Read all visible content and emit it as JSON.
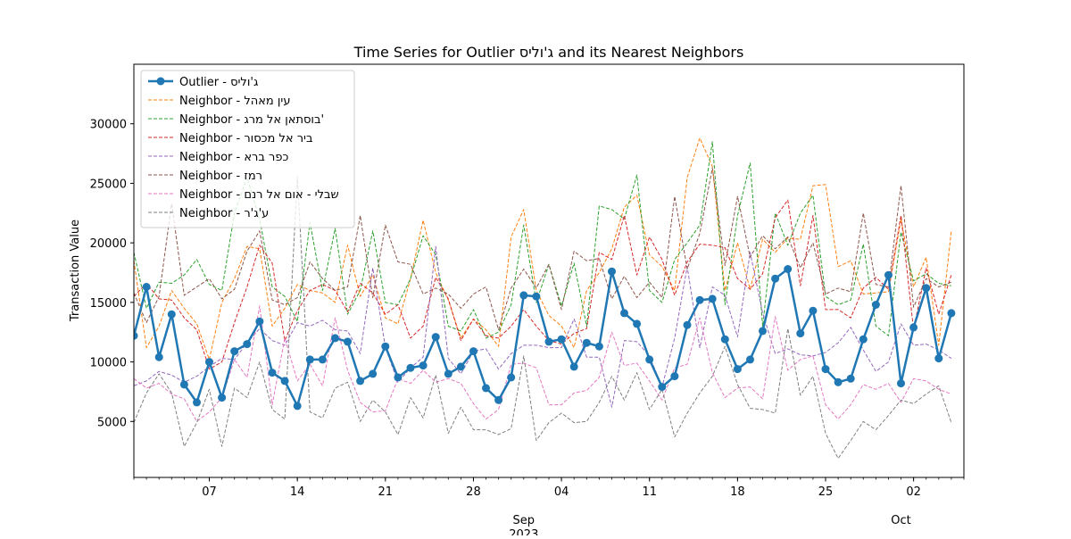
{
  "chart_data": {
    "type": "line",
    "title": "Time Series for Outlier ג'וליס and its Nearest Neighbors",
    "xlabel": "",
    "ylabel": "Transaction Value",
    "x_start": "2023-08-01",
    "x_end": "2023-10-06",
    "ylim": [
      300,
      35000
    ],
    "y_ticks": [
      5000,
      10000,
      15000,
      20000,
      25000,
      30000
    ],
    "x_ticks": [
      {
        "date": "2023-08-07",
        "label": "07"
      },
      {
        "date": "2023-08-14",
        "label": "14"
      },
      {
        "date": "2023-08-21",
        "label": "21"
      },
      {
        "date": "2023-08-28",
        "label": "28"
      },
      {
        "date": "2023-09-04",
        "label": "04"
      },
      {
        "date": "2023-09-11",
        "label": "11"
      },
      {
        "date": "2023-09-18",
        "label": "18"
      },
      {
        "date": "2023-09-25",
        "label": "25"
      },
      {
        "date": "2023-10-02",
        "label": "02"
      }
    ],
    "month_labels": [
      {
        "date": "2023-09-01",
        "label": "Sep",
        "year": "2023"
      },
      {
        "date": "2023-10-01",
        "label": "Oct",
        "year": ""
      }
    ],
    "grid": false,
    "legend_position": "top-left",
    "series": [
      {
        "name": "Outlier - ג'וליס",
        "color": "#1f77b4",
        "style": "outlier",
        "values": [
          12200,
          16300,
          10400,
          14000,
          8100,
          6600,
          10000,
          7000,
          10900,
          11500,
          13400,
          9100,
          8400,
          6300,
          10200,
          10200,
          12000,
          11700,
          8400,
          9000,
          11300,
          8700,
          9500,
          9700,
          12100,
          9000,
          9600,
          10900,
          7800,
          6800,
          8700,
          15600,
          15500,
          11700,
          11900,
          9600,
          11600,
          11300,
          17600,
          14100,
          13200,
          10200,
          7900,
          8800,
          13100,
          15200,
          15300,
          11900,
          9400,
          10200,
          12600,
          17000,
          17800,
          12400,
          14300,
          9400,
          8300,
          8600,
          11900,
          14800,
          17300,
          8200,
          12900,
          16200,
          10300,
          14100
        ]
      },
      {
        "name": "Neighbor - עין מאהל",
        "color": "#ff7f0e",
        "style": "neighbor",
        "values": [
          18500,
          11200,
          13000,
          16000,
          14500,
          13200,
          10200,
          15000,
          17000,
          19700,
          19500,
          13000,
          14500,
          16500,
          16000,
          15800,
          15000,
          19800,
          15500,
          17300,
          13700,
          13200,
          17000,
          21900,
          17500,
          15200,
          12000,
          13600,
          12700,
          11300,
          20500,
          22800,
          16000,
          13900,
          13000,
          11200,
          16000,
          17500,
          19500,
          23000,
          24000,
          19000,
          18000,
          16000,
          25500,
          28800,
          26400,
          16000,
          20000,
          16100,
          20300,
          19200,
          20400,
          20300,
          24800,
          24900,
          18000,
          18500,
          15700,
          15800,
          15900,
          22000,
          16300,
          18800,
          11400,
          21000
        ]
      },
      {
        "name": "Neighbor - בוסתאן אל מרג'",
        "color": "#2ca02c",
        "style": "neighbor",
        "values": [
          19200,
          14500,
          16700,
          16600,
          17300,
          18600,
          16500,
          16000,
          22500,
          25500,
          22000,
          16300,
          15500,
          13400,
          21700,
          16000,
          21200,
          14000,
          16000,
          21000,
          15000,
          14800,
          17000,
          20600,
          19000,
          13000,
          12600,
          14400,
          12000,
          12500,
          14800,
          21500,
          15000,
          18200,
          14700,
          18300,
          13000,
          23100,
          22800,
          22000,
          25700,
          16000,
          15000,
          18600,
          20000,
          21500,
          28500,
          14800,
          22300,
          26700,
          13000,
          22500,
          19800,
          22500,
          24000,
          15500,
          14800,
          15200,
          19900,
          13000,
          12200,
          20900,
          16800,
          17400,
          16600,
          16400
        ]
      },
      {
        "name": "Neighbor - ביר אל מכסור",
        "color": "#d62728",
        "style": "neighbor",
        "values": [
          15500,
          16600,
          15300,
          15200,
          13700,
          12700,
          9400,
          10000,
          13300,
          16300,
          19800,
          18300,
          11800,
          14300,
          16000,
          16500,
          16000,
          14200,
          16600,
          15800,
          14000,
          14800,
          12000,
          13000,
          17100,
          15300,
          11800,
          13600,
          12200,
          12000,
          13000,
          14400,
          13000,
          11800,
          11500,
          12400,
          12800,
          19200,
          18600,
          22300,
          17300,
          20500,
          18600,
          15600,
          18400,
          19900,
          19800,
          19600,
          17000,
          16100,
          17400,
          22100,
          23600,
          16400,
          22300,
          14400,
          14400,
          13700,
          16200,
          17100,
          16100,
          22300,
          12700,
          17900,
          14000,
          17300
        ]
      },
      {
        "name": "Neighbor - כפר ברא",
        "color": "#9467bd",
        "style": "neighbor",
        "values": [
          8000,
          8400,
          9200,
          8900,
          8300,
          8800,
          9600,
          10300,
          10200,
          11600,
          12800,
          11800,
          11400,
          13300,
          13000,
          13500,
          12700,
          12600,
          10700,
          17900,
          11200,
          8300,
          9500,
          10400,
          19700,
          10300,
          9000,
          10900,
          11100,
          9400,
          10700,
          11400,
          11400,
          11200,
          11200,
          13600,
          10400,
          10400,
          6200,
          11800,
          11700,
          10500,
          7900,
          12000,
          18000,
          11200,
          16300,
          15600,
          12100,
          19200,
          14100,
          10700,
          11100,
          10600,
          10500,
          10800,
          11600,
          12900,
          11000,
          9200,
          10000,
          13200,
          11400,
          11500,
          11000,
          10300
        ]
      },
      {
        "name": "Neighbor - רמז",
        "color": "#8c564b",
        "style": "neighbor",
        "values": [
          15800,
          13300,
          15500,
          23300,
          15600,
          16300,
          17000,
          15300,
          16100,
          19300,
          21000,
          15200,
          14800,
          15400,
          18400,
          17000,
          16000,
          16300,
          22300,
          15400,
          21500,
          18400,
          18200,
          15700,
          16200,
          15700,
          14500,
          15700,
          16300,
          12700,
          16200,
          17800,
          16200,
          18200,
          14400,
          19300,
          18500,
          18700,
          15300,
          17200,
          15400,
          16700,
          15400,
          23900,
          17800,
          20800,
          26300,
          18100,
          23900,
          18800,
          20600,
          19500,
          20500,
          17900,
          20000,
          15700,
          16200,
          15900,
          22500,
          16500,
          16300,
          24800,
          14600,
          17000,
          16300,
          16700
        ]
      },
      {
        "name": "Neighbor - שבלי - אום אל רנם",
        "color": "#e377c2",
        "style": "neighbor",
        "values": [
          8600,
          7800,
          8200,
          7300,
          6900,
          5000,
          5800,
          7000,
          10200,
          8700,
          14700,
          6400,
          12000,
          8400,
          9800,
          8000,
          13700,
          9300,
          6600,
          5800,
          5900,
          8600,
          8200,
          9300,
          8300,
          8600,
          8200,
          6500,
          5200,
          6000,
          9800,
          9900,
          9500,
          6400,
          6400,
          7400,
          7600,
          8700,
          12500,
          9700,
          9900,
          8400,
          6800,
          9500,
          9800,
          13700,
          9100,
          7000,
          7800,
          7900,
          6900,
          13800,
          9300,
          10200,
          10500,
          6400,
          5200,
          6400,
          8100,
          7700,
          8200,
          6600,
          8600,
          8400,
          7700,
          7300
        ]
      },
      {
        "name": "Neighbor - ע'ג'ר",
        "color": "#7f7f7f",
        "style": "neighbor",
        "values": [
          4900,
          7400,
          9000,
          7400,
          2900,
          4900,
          7700,
          2900,
          7800,
          7000,
          10000,
          6000,
          5200,
          25600,
          5800,
          5300,
          7800,
          8300,
          5000,
          6800,
          5800,
          3900,
          7000,
          5300,
          8900,
          4000,
          6200,
          4300,
          4300,
          3900,
          4400,
          10500,
          3400,
          4900,
          5700,
          4900,
          5000,
          6600,
          8800,
          6800,
          9100,
          6000,
          7700,
          3700,
          5700,
          7400,
          8800,
          11300,
          8100,
          6100,
          6000,
          5700,
          12800,
          7200,
          8800,
          4000,
          1900,
          3400,
          5000,
          4300,
          5500,
          6800,
          6500,
          7300,
          8000,
          4900
        ]
      }
    ]
  }
}
